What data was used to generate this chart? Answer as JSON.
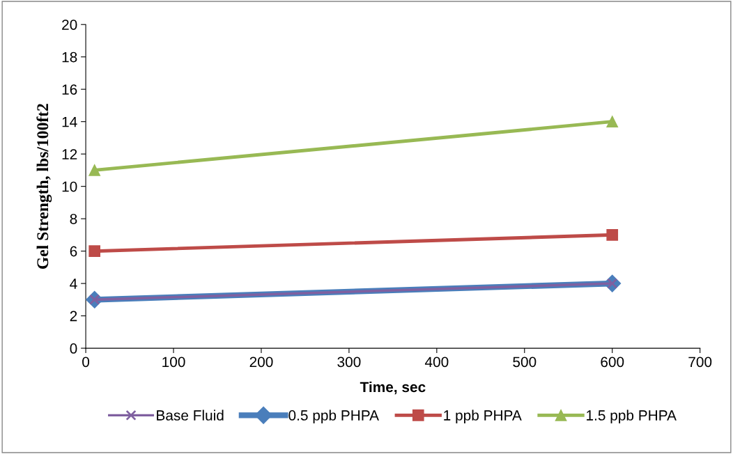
{
  "chart_data": {
    "type": "line",
    "xlabel": "Time, sec",
    "ylabel": "Gel Strength, lbs/100ft2",
    "x": [
      10,
      600
    ],
    "series": [
      {
        "name": "Base Fluid",
        "color": "#7f60a0",
        "values": [
          3,
          4
        ],
        "marker": "cross"
      },
      {
        "name": "0.5 ppb PHPA",
        "color": "#4a7ebb",
        "values": [
          3,
          4
        ],
        "marker": "diamond"
      },
      {
        "name": "1 ppb PHPA",
        "color": "#be4b48",
        "values": [
          6,
          7
        ],
        "marker": "square"
      },
      {
        "name": "1.5 ppb PHPA",
        "color": "#98b954",
        "values": [
          11,
          14
        ],
        "marker": "triangle"
      }
    ],
    "xlim": [
      0,
      700
    ],
    "xticks": [
      0,
      100,
      200,
      300,
      400,
      500,
      600,
      700
    ],
    "ylim": [
      0,
      20
    ],
    "yticks": [
      0,
      2,
      4,
      6,
      8,
      10,
      12,
      14,
      16,
      18,
      20
    ],
    "grid": false,
    "legend": "bottom",
    "line_style": "solid"
  }
}
